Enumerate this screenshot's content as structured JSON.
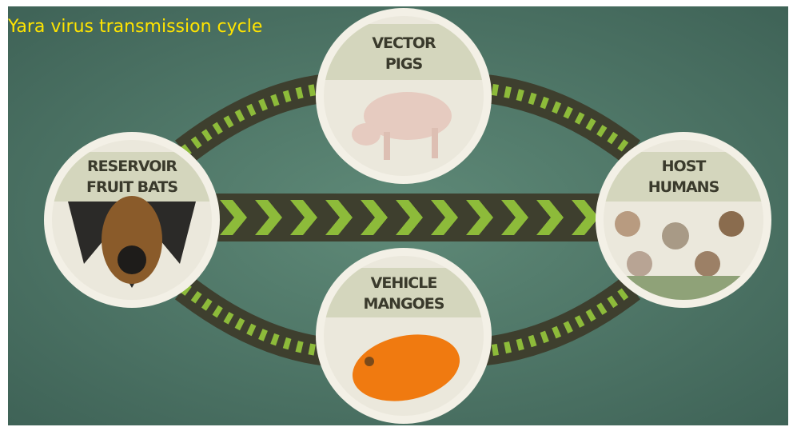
{
  "title": "Yara virus transmission cycle",
  "nodes": [
    {
      "role": "RESERVOIR",
      "label": "FRUIT BATS"
    },
    {
      "role": "VECTOR",
      "label": "PIGS"
    },
    {
      "role": "HOST",
      "label": "HUMANS"
    },
    {
      "role": "VEHICLE",
      "label": "MANGOES"
    }
  ]
}
